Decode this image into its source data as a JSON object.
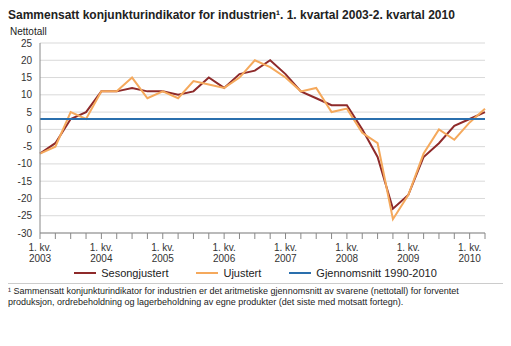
{
  "chart_data": {
    "type": "line",
    "title": "Sammensatt konjunkturindikator for industrien¹. 1. kvartal 2003-2. kvartal 2010",
    "y_label": "Nettotall",
    "categories": [
      "1. kv. 2003",
      null,
      null,
      null,
      "1. kv. 2004",
      null,
      null,
      null,
      "1. kv. 2005",
      null,
      null,
      null,
      "1. kv. 2006",
      null,
      null,
      null,
      "1. kv. 2007",
      null,
      null,
      null,
      "1. kv. 2008",
      null,
      null,
      null,
      "1. kv. 2009",
      null,
      null,
      null,
      "1. kv. 2010",
      null
    ],
    "series": [
      {
        "name": "Sesongjustert",
        "color": "#8e2a2a",
        "values": [
          -7,
          -4,
          3,
          5,
          11,
          11,
          12,
          11,
          11,
          10,
          11,
          15,
          12,
          16,
          17,
          20,
          16,
          11,
          9,
          7,
          7,
          0,
          -8,
          -23,
          -19,
          -8,
          -4,
          1,
          3,
          5
        ]
      },
      {
        "name": "Ujustert",
        "color": "#f5a95c",
        "values": [
          -7,
          -5,
          5,
          3,
          11,
          11,
          15,
          9,
          11,
          9,
          14,
          13,
          12,
          15,
          20,
          18,
          15,
          11,
          12,
          5,
          6,
          -1,
          -4,
          -26,
          -19,
          -7,
          0,
          -3,
          2,
          6
        ]
      },
      {
        "name": "Gjennomsnitt 1990-2010",
        "color": "#2a6fad",
        "values": [
          3,
          3,
          3,
          3,
          3,
          3,
          3,
          3,
          3,
          3,
          3,
          3,
          3,
          3,
          3,
          3,
          3,
          3,
          3,
          3,
          3,
          3,
          3,
          3,
          3,
          3,
          3,
          3,
          3,
          3
        ]
      }
    ],
    "ylim": [
      -30,
      25
    ],
    "yticks": [
      -30,
      -25,
      -20,
      -15,
      -10,
      -5,
      0,
      5,
      10,
      15,
      20,
      25
    ],
    "grid": true,
    "legend": "bottom",
    "footnote": "¹ Sammensatt konjunkturindikator for industrien er det aritmetiske gjennomsnitt av svarene (nettotall) for forventet produksjon, ordrebeholdning og lagerbeholdning av egne produkter (det siste med motsatt fortegn)."
  }
}
